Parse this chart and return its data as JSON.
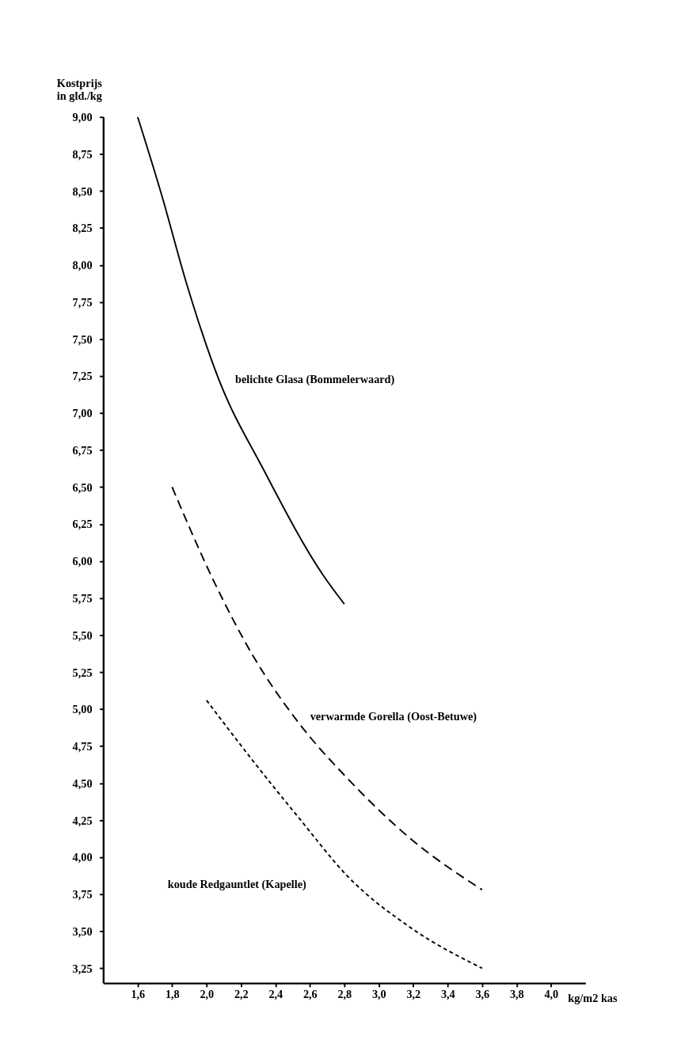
{
  "chart_data": {
    "type": "line",
    "xlabel": "kg/m2 kas",
    "ylabel": "Kostprijs\nin gld./kg",
    "xlim": [
      1.4,
      4.2
    ],
    "ylim": [
      3.15,
      9.0
    ],
    "xticks": [
      {
        "value": 1.6,
        "label": "1,6"
      },
      {
        "value": 1.8,
        "label": "1,8"
      },
      {
        "value": 2.0,
        "label": "2,0"
      },
      {
        "value": 2.2,
        "label": "2,2"
      },
      {
        "value": 2.4,
        "label": "2,4"
      },
      {
        "value": 2.6,
        "label": "2,6"
      },
      {
        "value": 2.8,
        "label": "2,8"
      },
      {
        "value": 3.0,
        "label": "3,0"
      },
      {
        "value": 3.2,
        "label": "3,2"
      },
      {
        "value": 3.4,
        "label": "3,4"
      },
      {
        "value": 3.6,
        "label": "3,6"
      },
      {
        "value": 3.8,
        "label": "3,8"
      },
      {
        "value": 4.0,
        "label": "4,0"
      }
    ],
    "yticks": [
      {
        "value": 3.25,
        "label": "3,25"
      },
      {
        "value": 3.5,
        "label": "3,50"
      },
      {
        "value": 3.75,
        "label": "3,75"
      },
      {
        "value": 4.0,
        "label": "4,00"
      },
      {
        "value": 4.25,
        "label": "4,25"
      },
      {
        "value": 4.5,
        "label": "4,50"
      },
      {
        "value": 4.75,
        "label": "4,75"
      },
      {
        "value": 5.0,
        "label": "5,00"
      },
      {
        "value": 5.25,
        "label": "5,25"
      },
      {
        "value": 5.5,
        "label": "5,50"
      },
      {
        "value": 5.75,
        "label": "5,75"
      },
      {
        "value": 6.0,
        "label": "6,00"
      },
      {
        "value": 6.25,
        "label": "6,25"
      },
      {
        "value": 6.5,
        "label": "6,50"
      },
      {
        "value": 6.75,
        "label": "6,75"
      },
      {
        "value": 7.0,
        "label": "7,00"
      },
      {
        "value": 7.25,
        "label": "7,25"
      },
      {
        "value": 7.5,
        "label": "7,50"
      },
      {
        "value": 7.75,
        "label": "7,75"
      },
      {
        "value": 8.0,
        "label": "8,00"
      },
      {
        "value": 8.25,
        "label": "8,25"
      },
      {
        "value": 8.5,
        "label": "8,50"
      },
      {
        "value": 8.75,
        "label": "8,75"
      },
      {
        "value": 9.0,
        "label": "9,00"
      }
    ],
    "grid": false,
    "legend": false,
    "marker": "none",
    "series": [
      {
        "name": "belichte Glasa (Bommelerwaard)",
        "color": "#000000",
        "line_style": "solid",
        "x": [
          1.6,
          1.74,
          1.88,
          2.07,
          2.33,
          2.68,
          2.8
        ],
        "values": [
          9.0,
          8.47,
          7.89,
          7.23,
          6.62,
          5.9,
          5.71
        ]
      },
      {
        "name": "verwarmde Gorella (Oost-Betuwe)",
        "color": "#000000",
        "line_style": "dashed",
        "x": [
          1.8,
          2.04,
          2.27,
          2.54,
          2.82,
          3.19,
          3.6
        ],
        "values": [
          6.5,
          5.87,
          5.36,
          4.9,
          4.53,
          4.12,
          3.78
        ]
      },
      {
        "name": "koude Redgauntlet (Kapelle)",
        "color": "#000000",
        "line_style": "dotted",
        "x": [
          2.0,
          2.27,
          2.54,
          2.82,
          3.19,
          3.6
        ],
        "values": [
          5.06,
          4.65,
          4.26,
          3.87,
          3.52,
          3.25
        ]
      }
    ]
  }
}
